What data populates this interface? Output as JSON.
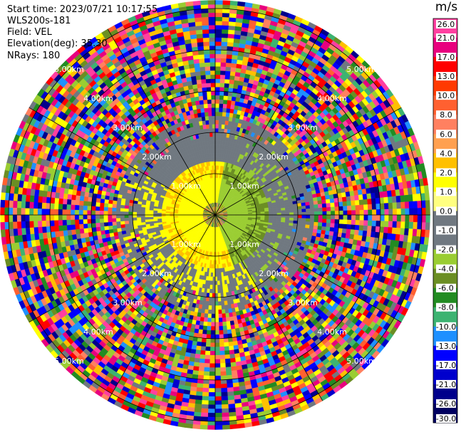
{
  "header": {
    "start_time": "Start time: 2023/07/21 10:17:55",
    "instrument": "WLS200s-181",
    "field": "Field: VEL",
    "elevation": "Elevation(deg): 35.30",
    "nrays": "NRays: 180"
  },
  "colorbar": {
    "unit": "m/s",
    "ticks": [
      "26.0",
      "21.0",
      "17.0",
      "13.0",
      "10.0",
      "8.0",
      "6.0",
      "4.0",
      "2.0",
      "1.0",
      "0.0",
      "-1.0",
      "-2.0",
      "-4.0",
      "-6.0",
      "-8.0",
      "-10.0",
      "-13.0",
      "-17.0",
      "-21.0",
      "-26.0",
      "-30.0"
    ],
    "colors": [
      "#ff3fa0",
      "#e8007e",
      "#ff0000",
      "#ff3a00",
      "#ff6030",
      "#ff8060",
      "#ffa050",
      "#ffc000",
      "#ffff00",
      "#ffff80",
      "#707880",
      "#707880",
      "#9acd32",
      "#6b8e23",
      "#228b22",
      "#3cb371",
      "#1e90ff",
      "#0000ff",
      "#0000cd",
      "#00008b",
      "#000060"
    ]
  },
  "chart_data": {
    "type": "heatmap",
    "projection": "polar PPI",
    "field": "VEL",
    "units": "m/s",
    "range_rings_km": [
      "1.00km",
      "2.00km",
      "3.00km",
      "4.00km",
      "5.00km"
    ],
    "max_range_km": 5.2,
    "nrays": 180,
    "color_range": [
      -30.0,
      26.0
    ],
    "approx_zones": [
      {
        "range_km": [
          0.0,
          0.35
        ],
        "description": "mixed near-center",
        "value": 0.0
      },
      {
        "range_km": [
          0.35,
          1.3
        ],
        "sector": "west/south",
        "value": 3.0
      },
      {
        "range_km": [
          0.35,
          1.3
        ],
        "sector": "east",
        "value": -3.0
      },
      {
        "range_km": [
          1.3,
          2.4
        ],
        "sector": "all",
        "value": 0.0
      },
      {
        "range_km": [
          2.4,
          5.2
        ],
        "sector": "all",
        "value": "noise"
      }
    ]
  }
}
